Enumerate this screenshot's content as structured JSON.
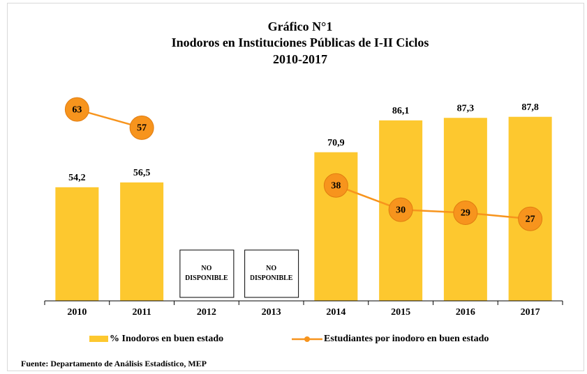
{
  "chart_data": {
    "type": "bar_line",
    "title": [
      "Gráfico N°1",
      "Inodoros  en Instituciones  Públicas de I-II  Ciclos",
      "2010-2017"
    ],
    "categories": [
      "2010",
      "2011",
      "2012",
      "2013",
      "2014",
      "2015",
      "2016",
      "2017"
    ],
    "series": [
      {
        "name": "% Inodoros en buen estado",
        "type": "bar",
        "color": "#fdc82f",
        "values": [
          54.2,
          56.5,
          null,
          null,
          70.9,
          86.1,
          87.3,
          87.8
        ],
        "value_labels": [
          "54,2",
          "56,5",
          null,
          null,
          "70,9",
          "86,1",
          "87,3",
          "87,8"
        ]
      },
      {
        "name": "Estudiantes por inodoro en buen estado",
        "type": "line",
        "axis": "y2",
        "color": "#f7941d",
        "values": [
          63,
          57,
          null,
          null,
          38,
          30,
          29,
          27
        ]
      }
    ],
    "annotations": [
      "NO DISPONIBLE",
      "NO DISPONIBLE"
    ],
    "ylim": [
      0,
      100
    ],
    "y2lim": [
      0,
      69
    ],
    "source": "Fuente: Departamento de Análisis Estadístico, MEP"
  }
}
